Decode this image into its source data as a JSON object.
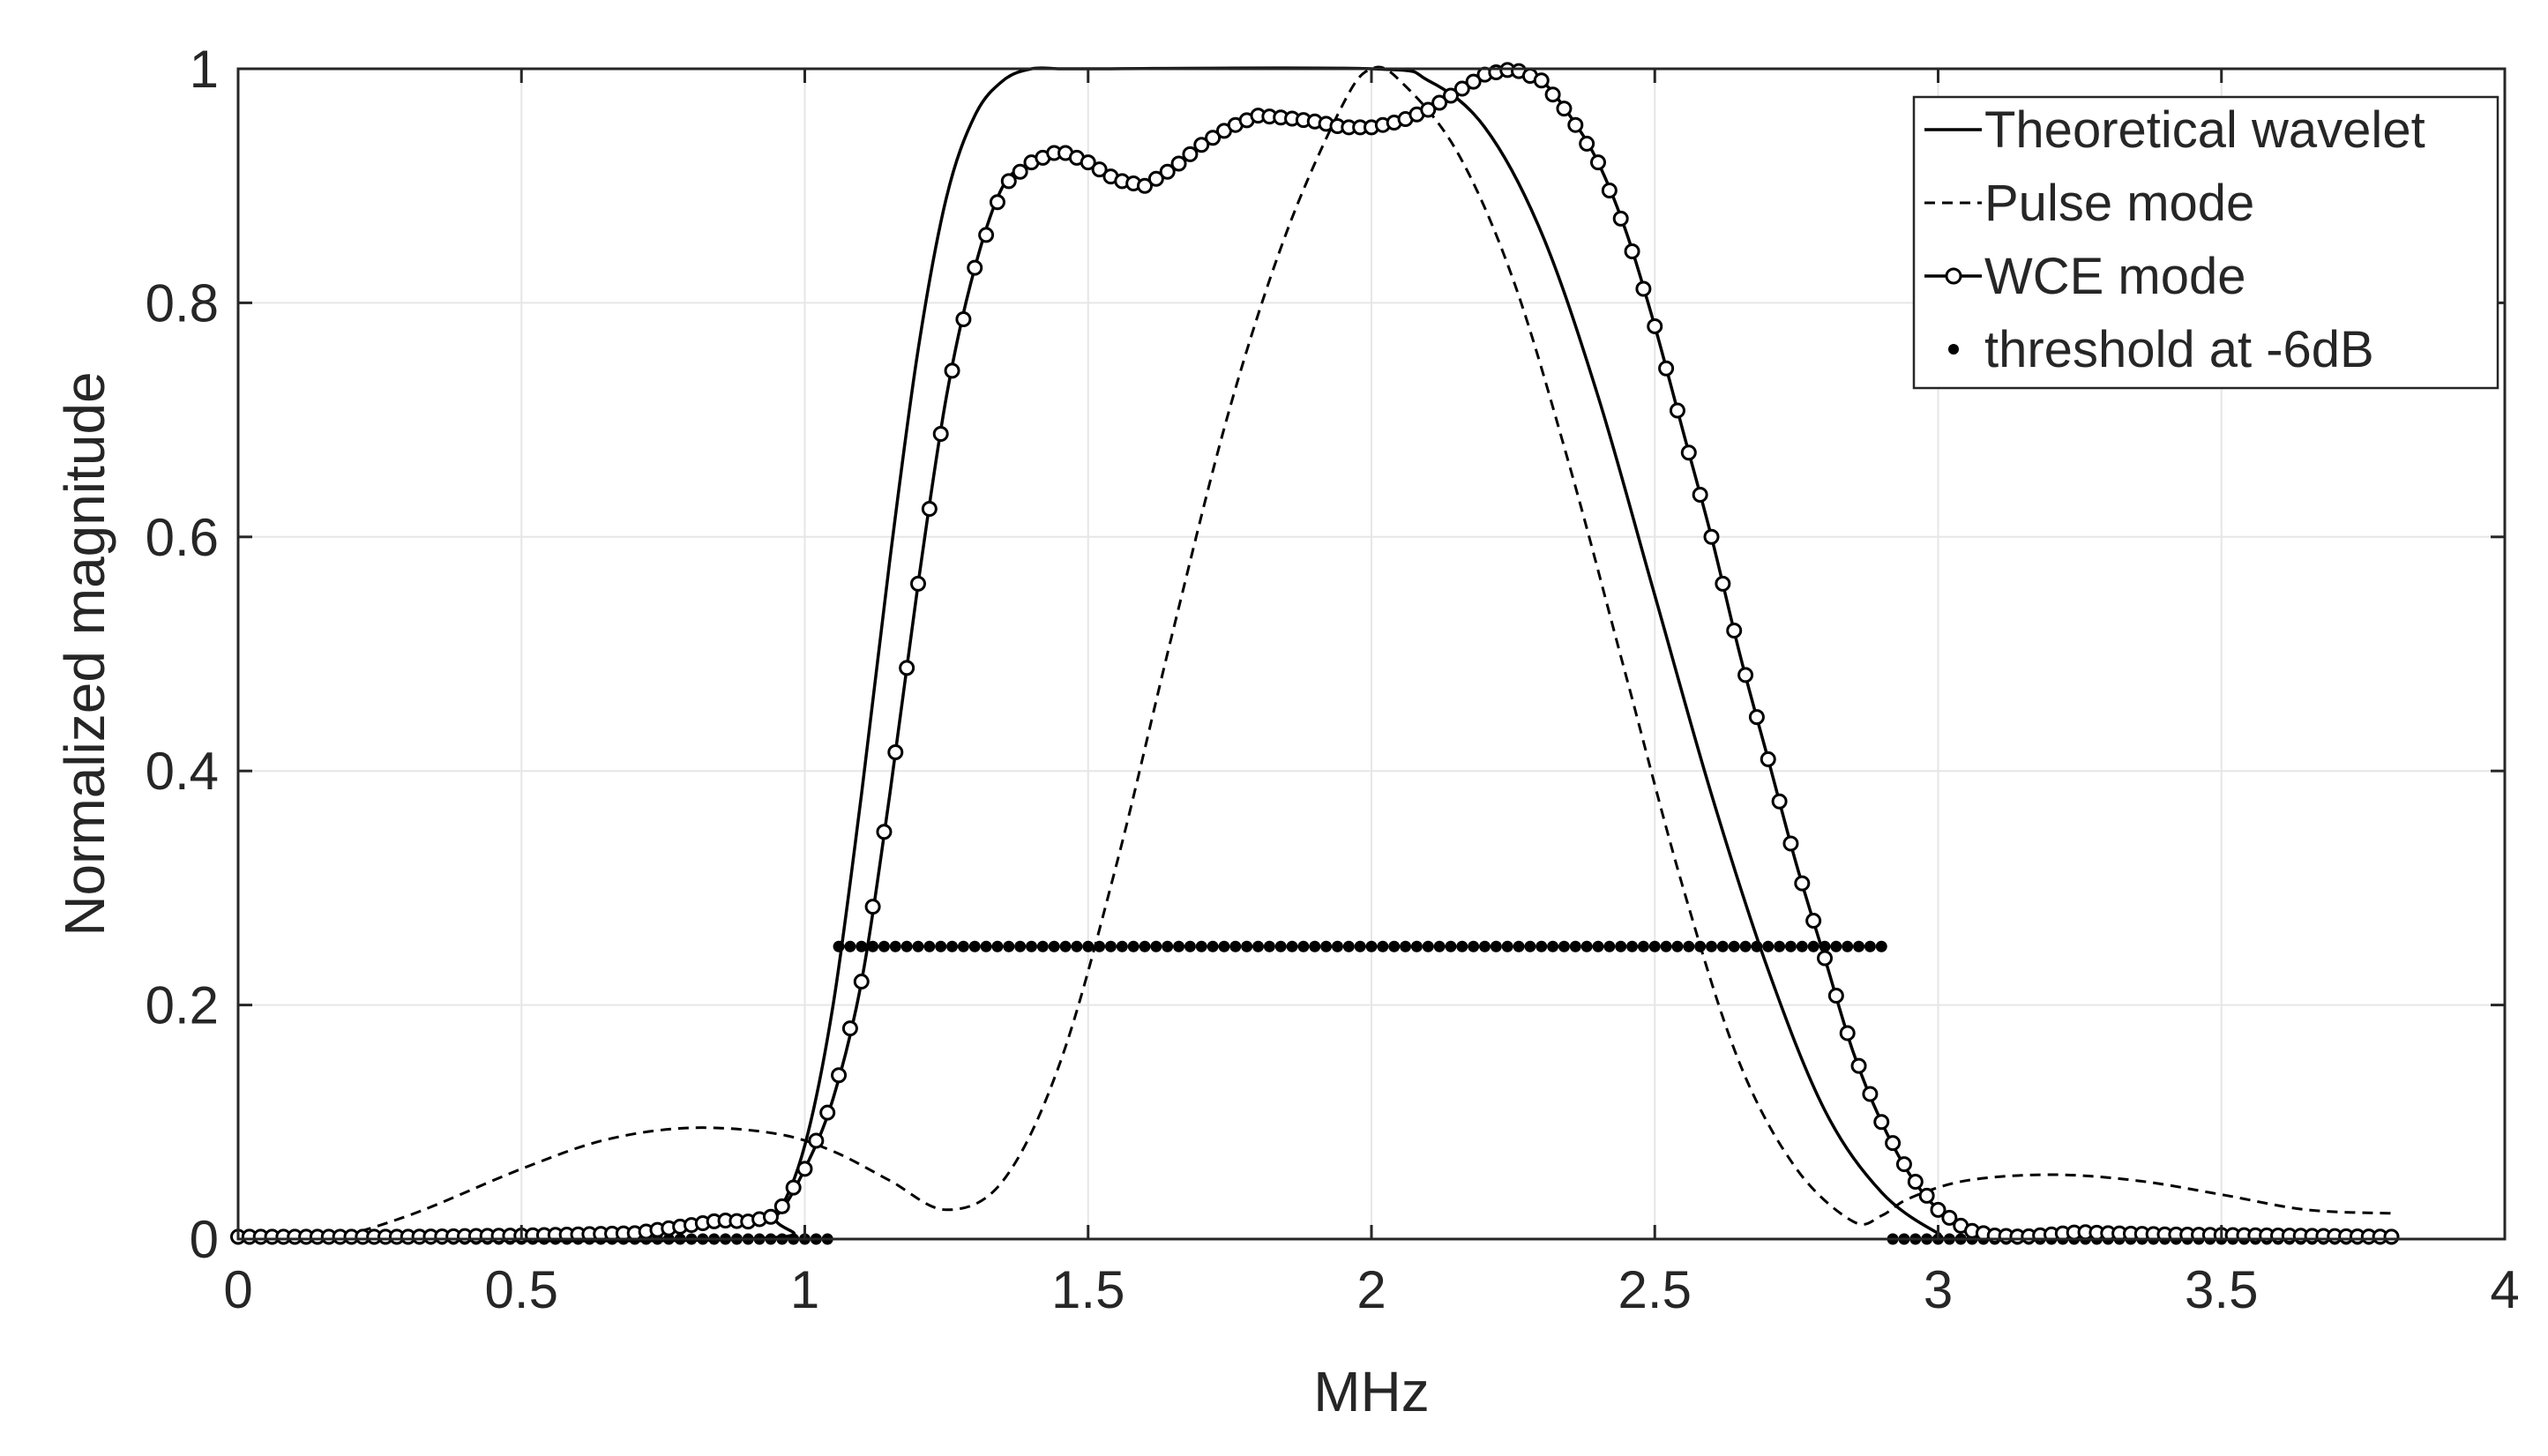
{
  "chart_data": {
    "type": "line",
    "title": "",
    "xlabel": "MHz",
    "ylabel": "Normalized magnitude",
    "xlim": [
      0,
      4
    ],
    "ylim": [
      0,
      1
    ],
    "xticks": [
      0,
      0.5,
      1,
      1.5,
      2,
      2.5,
      3,
      3.5,
      4
    ],
    "xtick_labels": [
      "0",
      "0.5",
      "1",
      "1.5",
      "2",
      "2.5",
      "3",
      "3.5",
      "4"
    ],
    "yticks": [
      0,
      0.2,
      0.4,
      0.6,
      0.8,
      1
    ],
    "ytick_labels": [
      "0",
      "0.2",
      "0.4",
      "0.6",
      "0.8",
      "1"
    ],
    "grid": true,
    "legend_position": "top-right",
    "colors": {
      "line": "#000000",
      "grid": "#e6e6e6",
      "axis": "#262626"
    },
    "series": [
      {
        "name": "Theoretical wavelet",
        "style": "solid",
        "x": [
          0,
          0.9,
          0.95,
          1.0,
          1.05,
          1.1,
          1.15,
          1.2,
          1.25,
          1.3,
          1.35,
          1.4,
          1.45,
          1.5,
          2.0,
          2.1,
          2.2,
          2.3,
          2.4,
          2.5,
          2.6,
          2.7,
          2.8,
          2.9,
          3.0,
          3.05,
          3.8
        ],
        "y": [
          0,
          0,
          0.02,
          0.08,
          0.2,
          0.38,
          0.58,
          0.76,
          0.89,
          0.96,
          0.99,
          1.0,
          1.0,
          1.0,
          1.0,
          0.99,
          0.95,
          0.86,
          0.72,
          0.55,
          0.38,
          0.23,
          0.11,
          0.04,
          0.005,
          0,
          0
        ]
      },
      {
        "name": "Pulse mode",
        "style": "dashed",
        "x": [
          0,
          0.15,
          0.3,
          0.5,
          0.65,
          0.8,
          0.95,
          1.05,
          1.15,
          1.25,
          1.35,
          1.45,
          1.55,
          1.65,
          1.75,
          1.85,
          1.95,
          2.0,
          2.05,
          2.15,
          2.25,
          2.35,
          2.45,
          2.55,
          2.65,
          2.75,
          2.85,
          2.9,
          2.95,
          3.05,
          3.2,
          3.35,
          3.5,
          3.65,
          3.8
        ],
        "y": [
          0,
          0,
          0.02,
          0.06,
          0.085,
          0.095,
          0.09,
          0.075,
          0.05,
          0.025,
          0.05,
          0.15,
          0.32,
          0.52,
          0.71,
          0.86,
          0.97,
          1.0,
          0.99,
          0.93,
          0.82,
          0.66,
          0.48,
          0.3,
          0.15,
          0.06,
          0.015,
          0.02,
          0.035,
          0.05,
          0.055,
          0.05,
          0.038,
          0.025,
          0.022
        ]
      },
      {
        "name": "WCE mode",
        "style": "solid-circle-markers",
        "x": [
          0,
          0.3,
          0.5,
          0.7,
          0.8,
          0.85,
          0.9,
          0.95,
          1.0,
          1.05,
          1.1,
          1.15,
          1.2,
          1.25,
          1.3,
          1.35,
          1.4,
          1.45,
          1.5,
          1.55,
          1.6,
          1.65,
          1.7,
          1.75,
          1.8,
          1.85,
          1.9,
          1.95,
          2.0,
          2.05,
          2.1,
          2.15,
          2.2,
          2.25,
          2.3,
          2.35,
          2.4,
          2.45,
          2.5,
          2.55,
          2.6,
          2.65,
          2.7,
          2.75,
          2.8,
          2.85,
          2.9,
          2.95,
          3.0,
          3.05,
          3.1,
          3.15,
          3.2,
          3.25,
          3.3,
          3.4,
          3.6,
          3.8
        ],
        "y": [
          0.002,
          0.002,
          0.003,
          0.005,
          0.012,
          0.016,
          0.015,
          0.02,
          0.06,
          0.12,
          0.22,
          0.38,
          0.56,
          0.72,
          0.83,
          0.9,
          0.92,
          0.93,
          0.92,
          0.905,
          0.9,
          0.915,
          0.935,
          0.95,
          0.96,
          0.958,
          0.955,
          0.95,
          0.95,
          0.955,
          0.965,
          0.98,
          0.995,
          1.0,
          0.99,
          0.96,
          0.92,
          0.86,
          0.78,
          0.69,
          0.6,
          0.5,
          0.41,
          0.32,
          0.24,
          0.16,
          0.1,
          0.055,
          0.025,
          0.008,
          0.003,
          0.002,
          0.004,
          0.006,
          0.005,
          0.004,
          0.003,
          0.002
        ]
      },
      {
        "name": "threshold at -6dB",
        "style": "dots",
        "x": [
          0,
          1.04,
          1.045,
          2.905,
          2.91,
          3.8
        ],
        "y": [
          0,
          0,
          0.25,
          0.25,
          0,
          0
        ]
      }
    ]
  }
}
